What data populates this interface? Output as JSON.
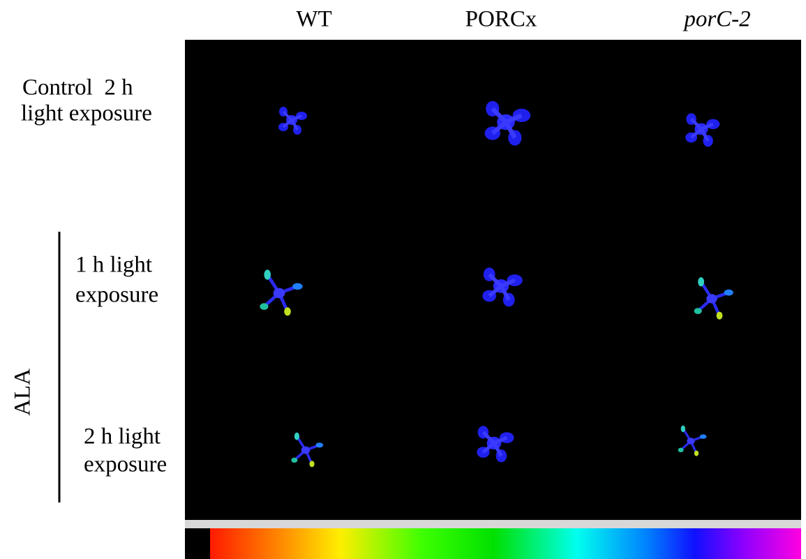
{
  "columns": [
    "WT",
    "PORCx",
    "porC-2"
  ],
  "rows": [
    {
      "lines": [
        "Control  2 h",
        "light exposure"
      ]
    },
    {
      "lines": [
        "1 h light",
        "exposure"
      ]
    },
    {
      "lines": [
        "2 h light",
        "exposure"
      ]
    }
  ],
  "group_label": "ALA"
}
